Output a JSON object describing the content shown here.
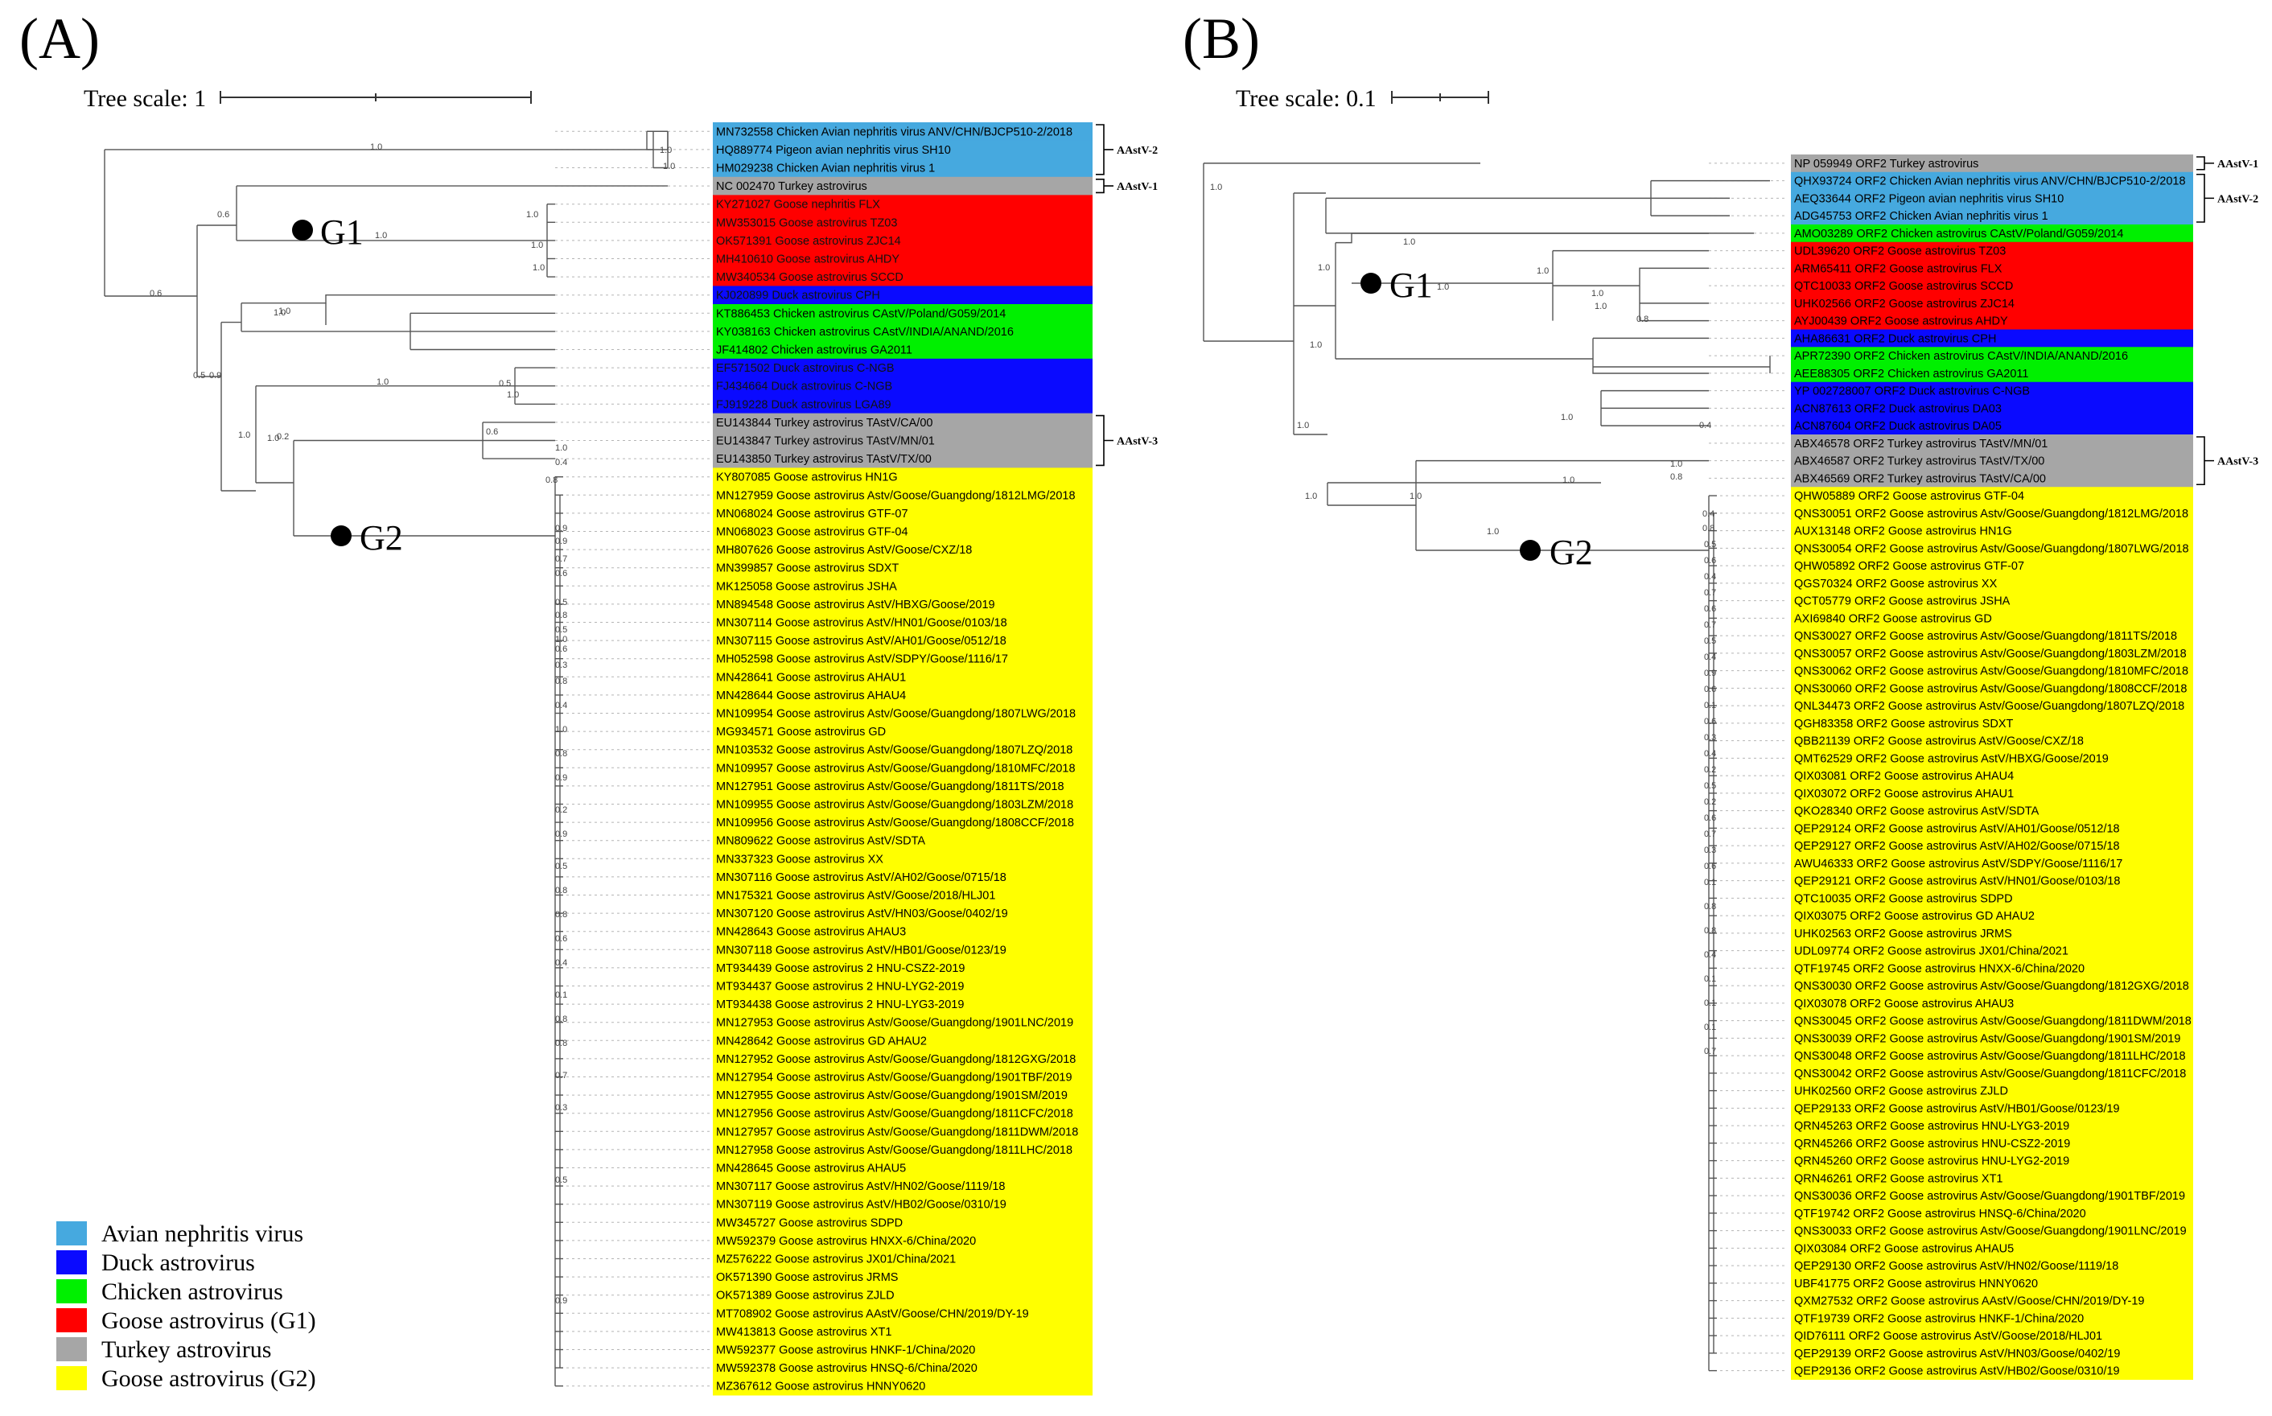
{
  "panel_a": {
    "label": "(A)",
    "scale_label": "Tree scale: 1",
    "g1_label": "G1",
    "g2_label": "G2",
    "clades": [
      {
        "label": "AAstV-2",
        "group": "avian"
      },
      {
        "label": "AAstV-1",
        "group": "turkey"
      },
      {
        "label": "AAstV-3",
        "group": "turkey"
      }
    ],
    "leaves": [
      {
        "name": "MN732558 Chicken Avian nephritis virus ANV/CHN/BJCP510-2/2018",
        "group": "avian"
      },
      {
        "name": "HQ889774 Pigeon avian nephritis virus SH10",
        "group": "avian"
      },
      {
        "name": "HM029238 Chicken Avian nephritis virus 1",
        "group": "avian"
      },
      {
        "name": "NC 002470 Turkey astrovirus",
        "group": "turkey"
      },
      {
        "name": "KY271027 Goose nephritis FLX",
        "group": "goose_g1"
      },
      {
        "name": "MW353015 Goose astrovirus TZ03",
        "group": "goose_g1"
      },
      {
        "name": "OK571391 Goose astrovirus ZJC14",
        "group": "goose_g1"
      },
      {
        "name": "MH410610 Goose astrovirus AHDY",
        "group": "goose_g1"
      },
      {
        "name": "MW340534 Goose astrovirus SCCD",
        "group": "goose_g1"
      },
      {
        "name": "KJ020899 Duck astrovirus CPH",
        "group": "duck"
      },
      {
        "name": "KT886453 Chicken astrovirus CAstV/Poland/G059/2014",
        "group": "chicken"
      },
      {
        "name": "KY038163 Chicken astrovirus CAstV/INDIA/ANAND/2016",
        "group": "chicken"
      },
      {
        "name": "JF414802 Chicken astrovirus GA2011",
        "group": "chicken"
      },
      {
        "name": "EF571502 Duck astrovirus C-NGB",
        "group": "duck"
      },
      {
        "name": "FJ434664 Duck astrovirus C-NGB",
        "group": "duck"
      },
      {
        "name": "FJ919228 Duck astrovirus LGA89",
        "group": "duck"
      },
      {
        "name": "EU143844 Turkey astrovirus TAstV/CA/00",
        "group": "turkey"
      },
      {
        "name": "EU143847 Turkey astrovirus TAstV/MN/01",
        "group": "turkey"
      },
      {
        "name": "EU143850 Turkey astrovirus TAstV/TX/00",
        "group": "turkey"
      },
      {
        "name": "KY807085 Goose astrovirus HN1G",
        "group": "goose_g2"
      },
      {
        "name": "MN127959 Goose astrovirus Astv/Goose/Guangdong/1812LMG/2018",
        "group": "goose_g2"
      },
      {
        "name": "MN068024 Goose astrovirus GTF-07",
        "group": "goose_g2"
      },
      {
        "name": "MN068023 Goose astrovirus GTF-04",
        "group": "goose_g2"
      },
      {
        "name": "MH807626 Goose astrovirus AstV/Goose/CXZ/18",
        "group": "goose_g2"
      },
      {
        "name": "MN399857 Goose astrovirus SDXT",
        "group": "goose_g2"
      },
      {
        "name": "MK125058 Goose astrovirus JSHA",
        "group": "goose_g2"
      },
      {
        "name": "MN894548 Goose astrovirus AstV/HBXG/Goose/2019",
        "group": "goose_g2"
      },
      {
        "name": "MN307114 Goose astrovirus AstV/HN01/Goose/0103/18",
        "group": "goose_g2"
      },
      {
        "name": "MN307115 Goose astrovirus AstV/AH01/Goose/0512/18",
        "group": "goose_g2"
      },
      {
        "name": "MH052598 Goose astrovirus AstV/SDPY/Goose/1116/17",
        "group": "goose_g2"
      },
      {
        "name": "MN428641 Goose astrovirus AHAU1",
        "group": "goose_g2"
      },
      {
        "name": "MN428644 Goose astrovirus AHAU4",
        "group": "goose_g2"
      },
      {
        "name": "MN109954 Goose astrovirus Astv/Goose/Guangdong/1807LWG/2018",
        "group": "goose_g2"
      },
      {
        "name": "MG934571 Goose astrovirus GD",
        "group": "goose_g2"
      },
      {
        "name": "MN103532 Goose astrovirus Astv/Goose/Guangdong/1807LZQ/2018",
        "group": "goose_g2"
      },
      {
        "name": "MN109957 Goose astrovirus Astv/Goose/Guangdong/1810MFC/2018",
        "group": "goose_g2"
      },
      {
        "name": "MN127951 Goose astrovirus Astv/Goose/Guangdong/1811TS/2018",
        "group": "goose_g2"
      },
      {
        "name": "MN109955 Goose astrovirus Astv/Goose/Guangdong/1803LZM/2018",
        "group": "goose_g2"
      },
      {
        "name": "MN109956 Goose astrovirus Astv/Goose/Guangdong/1808CCF/2018",
        "group": "goose_g2"
      },
      {
        "name": "MN809622 Goose astrovirus AstV/SDTA",
        "group": "goose_g2"
      },
      {
        "name": "MN337323 Goose astrovirus XX",
        "group": "goose_g2"
      },
      {
        "name": "MN307116 Goose astrovirus AstV/AH02/Goose/0715/18",
        "group": "goose_g2"
      },
      {
        "name": "MN175321 Goose astrovirus AstV/Goose/2018/HLJ01",
        "group": "goose_g2"
      },
      {
        "name": "MN307120 Goose astrovirus AstV/HN03/Goose/0402/19",
        "group": "goose_g2"
      },
      {
        "name": "MN428643 Goose astrovirus AHAU3",
        "group": "goose_g2"
      },
      {
        "name": "MN307118 Goose astrovirus AstV/HB01/Goose/0123/19",
        "group": "goose_g2"
      },
      {
        "name": "MT934439 Goose astrovirus 2 HNU-CSZ2-2019",
        "group": "goose_g2"
      },
      {
        "name": "MT934437 Goose astrovirus 2 HNU-LYG2-2019",
        "group": "goose_g2"
      },
      {
        "name": "MT934438 Goose astrovirus 2 HNU-LYG3-2019",
        "group": "goose_g2"
      },
      {
        "name": "MN127953 Goose astrovirus Astv/Goose/Guangdong/1901LNC/2019",
        "group": "goose_g2"
      },
      {
        "name": "MN428642 Goose astrovirus GD AHAU2",
        "group": "goose_g2"
      },
      {
        "name": "MN127952 Goose astrovirus Astv/Goose/Guangdong/1812GXG/2018",
        "group": "goose_g2"
      },
      {
        "name": "MN127954 Goose astrovirus Astv/Goose/Guangdong/1901TBF/2019",
        "group": "goose_g2"
      },
      {
        "name": "MN127955 Goose astrovirus Astv/Goose/Guangdong/1901SM/2019",
        "group": "goose_g2"
      },
      {
        "name": "MN127956 Goose astrovirus Astv/Goose/Guangdong/1811CFC/2018",
        "group": "goose_g2"
      },
      {
        "name": "MN127957 Goose astrovirus Astv/Goose/Guangdong/1811DWM/2018",
        "group": "goose_g2"
      },
      {
        "name": "MN127958 Goose astrovirus Astv/Goose/Guangdong/1811LHC/2018",
        "group": "goose_g2"
      },
      {
        "name": "MN428645 Goose astrovirus AHAU5",
        "group": "goose_g2"
      },
      {
        "name": "MN307117 Goose astrovirus AstV/HN02/Goose/1119/18",
        "group": "goose_g2"
      },
      {
        "name": "MN307119 Goose astrovirus AstV/HB02/Goose/0310/19",
        "group": "goose_g2"
      },
      {
        "name": "MW345727 Goose astrovirus SDPD",
        "group": "goose_g2"
      },
      {
        "name": "MW592379 Goose astrovirus HNXX-6/China/2020",
        "group": "goose_g2"
      },
      {
        "name": "MZ576222 Goose astrovirus JX01/China/2021",
        "group": "goose_g2"
      },
      {
        "name": "OK571390 Goose astrovirus JRMS",
        "group": "goose_g2"
      },
      {
        "name": "OK571389 Goose astrovirus ZJLD",
        "group": "goose_g2"
      },
      {
        "name": "MT708902 Goose astrovirus AAstV/Goose/CHN/2019/DY-19",
        "group": "goose_g2"
      },
      {
        "name": "MW413813 Goose astrovirus XT1",
        "group": "goose_g2"
      },
      {
        "name": "MW592377 Goose astrovirus HNKF-1/China/2020",
        "group": "goose_g2"
      },
      {
        "name": "MW592378 Goose astrovirus HNSQ-6/China/2020",
        "group": "goose_g2"
      },
      {
        "name": "MZ367612 Goose astrovirus HNNY0620",
        "group": "goose_g2"
      }
    ]
  },
  "panel_b": {
    "label": "(B)",
    "scale_label": "Tree scale: 0.1",
    "g1_label": "G1",
    "g2_label": "G2",
    "clades": [
      {
        "label": "AAstV-1",
        "group": "turkey"
      },
      {
        "label": "AAstV-2",
        "group": "avian"
      },
      {
        "label": "AAstV-3",
        "group": "turkey"
      }
    ],
    "leaves": [
      {
        "name": "NP 059949 ORF2 Turkey astrovirus",
        "group": "turkey"
      },
      {
        "name": "QHX93724 ORF2 Chicken Avian nephritis virus ANV/CHN/BJCP510-2/2018",
        "group": "avian"
      },
      {
        "name": "AEQ33644 ORF2 Pigeon avian nephritis virus SH10",
        "group": "avian"
      },
      {
        "name": "ADG45753 ORF2 Chicken Avian nephritis virus 1",
        "group": "avian"
      },
      {
        "name": "AMO03289 ORF2 Chicken astrovirus CAstV/Poland/G059/2014",
        "group": "chicken"
      },
      {
        "name": "UDL39620 ORF2 Goose astrovirus TZ03",
        "group": "goose_g1"
      },
      {
        "name": "ARM65411 ORF2 Goose astrovirus FLX",
        "group": "goose_g1"
      },
      {
        "name": "QTC10033 ORF2 Goose astrovirus SCCD",
        "group": "goose_g1"
      },
      {
        "name": "UHK02566 ORF2 Goose astrovirus ZJC14",
        "group": "goose_g1"
      },
      {
        "name": "AYJ00439 ORF2 Goose astrovirus AHDY",
        "group": "goose_g1"
      },
      {
        "name": "AHA86631 ORF2 Duck astrovirus CPH",
        "group": "duck"
      },
      {
        "name": "APR72390 ORF2 Chicken astrovirus CAstV/INDIA/ANAND/2016",
        "group": "chicken"
      },
      {
        "name": "AEE88305 ORF2 Chicken astrovirus GA2011",
        "group": "chicken"
      },
      {
        "name": "YP 002728007 ORF2 Duck astrovirus C-NGB",
        "group": "duck"
      },
      {
        "name": "ACN87613 ORF2 Duck astrovirus DA03",
        "group": "duck"
      },
      {
        "name": "ACN87604 ORF2 Duck astrovirus DA05",
        "group": "duck"
      },
      {
        "name": "ABX46578 ORF2 Turkey astrovirus TAstV/MN/01",
        "group": "turkey"
      },
      {
        "name": "ABX46587 ORF2 Turkey astrovirus TAstV/TX/00",
        "group": "turkey"
      },
      {
        "name": "ABX46569 ORF2 Turkey astrovirus TAstV/CA/00",
        "group": "turkey"
      },
      {
        "name": "QHW05889 ORF2 Goose astrovirus GTF-04",
        "group": "goose_g2"
      },
      {
        "name": "QNS30051 ORF2 Goose astrovirus Astv/Goose/Guangdong/1812LMG/2018",
        "group": "goose_g2"
      },
      {
        "name": "AUX13148 ORF2 Goose astrovirus HN1G",
        "group": "goose_g2"
      },
      {
        "name": "QNS30054 ORF2 Goose astrovirus Astv/Goose/Guangdong/1807LWG/2018",
        "group": "goose_g2"
      },
      {
        "name": "QHW05892 ORF2 Goose astrovirus GTF-07",
        "group": "goose_g2"
      },
      {
        "name": "QGS70324 ORF2 Goose astrovirus XX",
        "group": "goose_g2"
      },
      {
        "name": "QCT05779 ORF2 Goose astrovirus JSHA",
        "group": "goose_g2"
      },
      {
        "name": "AXI69840 ORF2 Goose astrovirus GD",
        "group": "goose_g2"
      },
      {
        "name": "QNS30027 ORF2 Goose astrovirus Astv/Goose/Guangdong/1811TS/2018",
        "group": "goose_g2"
      },
      {
        "name": "QNS30057 ORF2 Goose astrovirus Astv/Goose/Guangdong/1803LZM/2018",
        "group": "goose_g2"
      },
      {
        "name": "QNS30062 ORF2 Goose astrovirus Astv/Goose/Guangdong/1810MFC/2018",
        "group": "goose_g2"
      },
      {
        "name": "QNS30060 ORF2 Goose astrovirus Astv/Goose/Guangdong/1808CCF/2018",
        "group": "goose_g2"
      },
      {
        "name": "QNL34473 ORF2 Goose astrovirus Astv/Goose/Guangdong/1807LZQ/2018",
        "group": "goose_g2"
      },
      {
        "name": "QGH83358 ORF2 Goose astrovirus SDXT",
        "group": "goose_g2"
      },
      {
        "name": "QBB21139 ORF2 Goose astrovirus AstV/Goose/CXZ/18",
        "group": "goose_g2"
      },
      {
        "name": "QMT62529 ORF2 Goose astrovirus AstV/HBXG/Goose/2019",
        "group": "goose_g2"
      },
      {
        "name": "QIX03081 ORF2 Goose astrovirus AHAU4",
        "group": "goose_g2"
      },
      {
        "name": "QIX03072 ORF2 Goose astrovirus AHAU1",
        "group": "goose_g2"
      },
      {
        "name": "QKO28340 ORF2 Goose astrovirus AstV/SDTA",
        "group": "goose_g2"
      },
      {
        "name": "QEP29124 ORF2 Goose astrovirus AstV/AH01/Goose/0512/18",
        "group": "goose_g2"
      },
      {
        "name": "QEP29127 ORF2 Goose astrovirus AstV/AH02/Goose/0715/18",
        "group": "goose_g2"
      },
      {
        "name": "AWU46333 ORF2 Goose astrovirus AstV/SDPY/Goose/1116/17",
        "group": "goose_g2"
      },
      {
        "name": "QEP29121 ORF2 Goose astrovirus AstV/HN01/Goose/0103/18",
        "group": "goose_g2"
      },
      {
        "name": "QTC10035 ORF2 Goose astrovirus SDPD",
        "group": "goose_g2"
      },
      {
        "name": "QIX03075 ORF2 Goose astrovirus GD AHAU2",
        "group": "goose_g2"
      },
      {
        "name": "UHK02563 ORF2 Goose astrovirus JRMS",
        "group": "goose_g2"
      },
      {
        "name": "UDL09774 ORF2 Goose astrovirus JX01/China/2021",
        "group": "goose_g2"
      },
      {
        "name": "QTF19745 ORF2 Goose astrovirus HNXX-6/China/2020",
        "group": "goose_g2"
      },
      {
        "name": "QNS30030 ORF2 Goose astrovirus Astv/Goose/Guangdong/1812GXG/2018",
        "group": "goose_g2"
      },
      {
        "name": "QIX03078 ORF2 Goose astrovirus AHAU3",
        "group": "goose_g2"
      },
      {
        "name": "QNS30045 ORF2 Goose astrovirus Astv/Goose/Guangdong/1811DWM/2018",
        "group": "goose_g2"
      },
      {
        "name": "QNS30039 ORF2 Goose astrovirus Astv/Goose/Guangdong/1901SM/2019",
        "group": "goose_g2"
      },
      {
        "name": "QNS30048 ORF2 Goose astrovirus Astv/Goose/Guangdong/1811LHC/2018",
        "group": "goose_g2"
      },
      {
        "name": "QNS30042 ORF2 Goose astrovirus Astv/Goose/Guangdong/1811CFC/2018",
        "group": "goose_g2"
      },
      {
        "name": "UHK02560 ORF2 Goose astrovirus ZJLD",
        "group": "goose_g2"
      },
      {
        "name": "QEP29133 ORF2 Goose astrovirus AstV/HB01/Goose/0123/19",
        "group": "goose_g2"
      },
      {
        "name": "QRN45263 ORF2 Goose astrovirus HNU-LYG3-2019",
        "group": "goose_g2"
      },
      {
        "name": "QRN45266 ORF2 Goose astrovirus HNU-CSZ2-2019",
        "group": "goose_g2"
      },
      {
        "name": "QRN45260 ORF2 Goose astrovirus HNU-LYG2-2019",
        "group": "goose_g2"
      },
      {
        "name": "QRN46261 ORF2 Goose astrovirus XT1",
        "group": "goose_g2"
      },
      {
        "name": "QNS30036 ORF2 Goose astrovirus Astv/Goose/Guangdong/1901TBF/2019",
        "group": "goose_g2"
      },
      {
        "name": "QTF19742 ORF2 Goose astrovirus HNSQ-6/China/2020",
        "group": "goose_g2"
      },
      {
        "name": "QNS30033 ORF2 Goose astrovirus Astv/Goose/Guangdong/1901LNC/2019",
        "group": "goose_g2"
      },
      {
        "name": "QIX03084 ORF2 Goose astrovirus AHAU5",
        "group": "goose_g2"
      },
      {
        "name": "QEP29130 ORF2 Goose astrovirus AstV/HN02/Goose/1119/18",
        "group": "goose_g2"
      },
      {
        "name": "UBF41775 ORF2 Goose astrovirus HNNY0620",
        "group": "goose_g2"
      },
      {
        "name": "QXM27532 ORF2 Goose astrovirus AAstV/Goose/CHN/2019/DY-19",
        "group": "goose_g2"
      },
      {
        "name": "QTF19739 ORF2 Goose astrovirus HNKF-1/China/2020",
        "group": "goose_g2"
      },
      {
        "name": "QID76111 ORF2 Goose astrovirus AstV/Goose/2018/HLJ01",
        "group": "goose_g2"
      },
      {
        "name": "QEP29139 ORF2 Goose astrovirus AstV/HN03/Goose/0402/19",
        "group": "goose_g2"
      },
      {
        "name": "QEP29136 ORF2 Goose astrovirus AstV/HB02/Goose/0310/19",
        "group": "goose_g2"
      }
    ]
  },
  "legend": [
    {
      "key": "avian",
      "label": "Avian nephritis virus",
      "color": "#46a9df"
    },
    {
      "key": "duck",
      "label": "Duck astrovirus",
      "color": "#0a0aff"
    },
    {
      "key": "chicken",
      "label": "Chicken astrovirus",
      "color": "#00f000"
    },
    {
      "key": "goose_g1",
      "label": "Goose astrovirus (G1)",
      "color": "#ff0000"
    },
    {
      "key": "turkey",
      "label": "Turkey astrovirus",
      "color": "#a6a6a6"
    },
    {
      "key": "goose_g2",
      "label": "Goose astrovirus (G2)",
      "color": "#ffff00"
    }
  ],
  "support_values_a": [
    "1.0",
    "1.0",
    "1.0",
    "0.6",
    "1.0",
    "0.5",
    "1.0",
    "1.0",
    "1.0",
    "0.6",
    "1.0",
    "0.9",
    "1.0",
    "0.5",
    "1.0",
    "1.0",
    "1.0",
    "1.0",
    "0.2",
    "0.6",
    "1.0",
    "0.4",
    "0.8",
    "0.9",
    "0.9",
    "0.7",
    "0.6",
    "0.5",
    "0.8",
    "0.5",
    "1.0",
    "0.6",
    "0.3",
    "0.8",
    "0.4",
    "1.0",
    "0.8",
    "0.9",
    "0.2",
    "0.9",
    "0.5",
    "0.8",
    "0.8",
    "0.6",
    "0.4",
    "0.1",
    "0.8",
    "0.8",
    "0.7",
    "0.3",
    "0.5",
    "0.9"
  ],
  "support_values_b": [
    "1.0",
    "1.0",
    "1.0",
    "1.0",
    "1.0",
    "1.0",
    "1.0",
    "1.0",
    "0.8",
    "1.0",
    "1.0",
    "1.0",
    "1.0",
    "0.4",
    "1.0",
    "1.0",
    "0.8",
    "1.0",
    "0.4",
    "0.8",
    "0.5",
    "0.6",
    "0.4",
    "0.7",
    "0.6",
    "0.7",
    "0.5",
    "0.4",
    "0.9",
    "0.6",
    "0.1",
    "0.6",
    "0.3",
    "0.4",
    "0.2",
    "0.5",
    "0.2",
    "0.6",
    "0.7",
    "0.3",
    "0.6",
    "0.1",
    "0.8",
    "0.8",
    "0.4",
    "0.1",
    "0.1",
    "0.1",
    "0.7"
  ]
}
